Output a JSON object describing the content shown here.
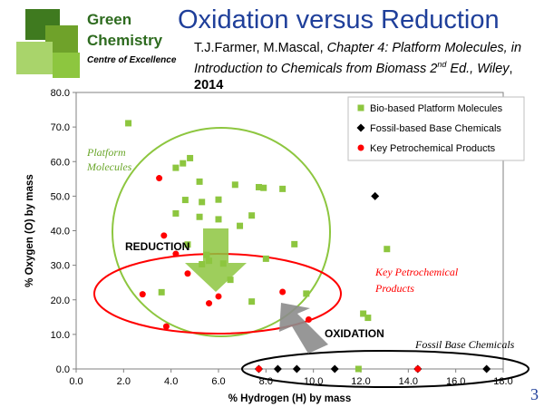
{
  "logo": {
    "line1": "Green",
    "line2": "Chemistry",
    "line3": "Centre of Excellence"
  },
  "header": {
    "title": "Oxidation versus Reduction",
    "ref_authors": "T.J.Farmer, M.Mascal, ",
    "ref_title": "Chapter 4: Platform Molecules, in Introduction to Chemicals from Biomass 2",
    "ref_sup": "nd",
    "ref_ed": " Ed., Wiley",
    "ref_comma": ", ",
    "ref_year": "2014"
  },
  "page_number": "3",
  "colors": {
    "bio": "#8dc63f",
    "fossil": "#000000",
    "petro": "#ff0000",
    "title": "#1f3f9a",
    "ellipse_green": "#8dc63f",
    "ellipse_red": "#ff0000",
    "ellipse_black": "#000000"
  },
  "chart_data": {
    "type": "scatter",
    "xlabel": "% Hydrogen (H) by mass",
    "ylabel": "% Oxygen (O) by mass",
    "xlim": [
      0,
      18
    ],
    "ylim": [
      0,
      80
    ],
    "xticks": [
      "0.0",
      "2.0",
      "4.0",
      "6.0",
      "8.0",
      "10.0",
      "12.0",
      "14.0",
      "16.0",
      "18.0"
    ],
    "yticks": [
      "0.0",
      "10.0",
      "20.0",
      "30.0",
      "40.0",
      "50.0",
      "60.0",
      "70.0",
      "80.0"
    ],
    "legend_position": "top-right",
    "series": [
      {
        "name": "Bio-based Platform Molecules",
        "marker": "square",
        "color": "#8dc63f",
        "points": [
          [
            2.2,
            71.1
          ],
          [
            4.2,
            58.2
          ],
          [
            4.5,
            59.5
          ],
          [
            4.8,
            61.0
          ],
          [
            5.2,
            54.2
          ],
          [
            4.6,
            48.9
          ],
          [
            5.3,
            48.3
          ],
          [
            6.0,
            49.0
          ],
          [
            6.7,
            53.3
          ],
          [
            7.7,
            52.6
          ],
          [
            7.9,
            52.4
          ],
          [
            8.7,
            52.1
          ],
          [
            5.2,
            44.0
          ],
          [
            6.0,
            43.3
          ],
          [
            6.9,
            41.4
          ],
          [
            7.4,
            44.4
          ],
          [
            4.2,
            45.0
          ],
          [
            4.7,
            36.0
          ],
          [
            5.5,
            33.0
          ],
          [
            9.2,
            36.1
          ],
          [
            8.0,
            31.9
          ],
          [
            6.2,
            30.5
          ],
          [
            5.6,
            31.3
          ],
          [
            5.3,
            30.3
          ],
          [
            6.5,
            25.8
          ],
          [
            7.4,
            19.5
          ],
          [
            3.6,
            22.2
          ],
          [
            9.7,
            21.8
          ],
          [
            12.1,
            16.0
          ],
          [
            12.3,
            14.8
          ],
          [
            11.9,
            0.0
          ],
          [
            13.1,
            34.7
          ]
        ]
      },
      {
        "name": "Fossil-based Base Chemicals",
        "marker": "diamond",
        "color": "#000000",
        "points": [
          [
            12.6,
            50.0
          ],
          [
            7.7,
            0.0
          ],
          [
            8.5,
            0.0
          ],
          [
            9.3,
            0.0
          ],
          [
            10.9,
            0.0
          ],
          [
            14.4,
            0.0
          ],
          [
            17.3,
            0.0
          ]
        ]
      },
      {
        "name": "Key Petrochemical Products",
        "marker": "circle",
        "color": "#ff0000",
        "points": [
          [
            3.5,
            55.2
          ],
          [
            3.7,
            38.6
          ],
          [
            4.2,
            33.3
          ],
          [
            4.7,
            27.6
          ],
          [
            2.8,
            21.6
          ],
          [
            3.8,
            12.3
          ],
          [
            5.6,
            19.0
          ],
          [
            6.0,
            21.0
          ],
          [
            8.7,
            22.3
          ],
          [
            9.8,
            14.3
          ],
          [
            7.7,
            0.0
          ],
          [
            14.4,
            0.0
          ]
        ]
      }
    ],
    "annotations": {
      "platform": "Platform Molecules",
      "reduction": "REDUCTION",
      "oxidation": "OXIDATION",
      "petro": "Key Petrochemical Products",
      "fossil": "Fossil Base Chemicals"
    }
  }
}
